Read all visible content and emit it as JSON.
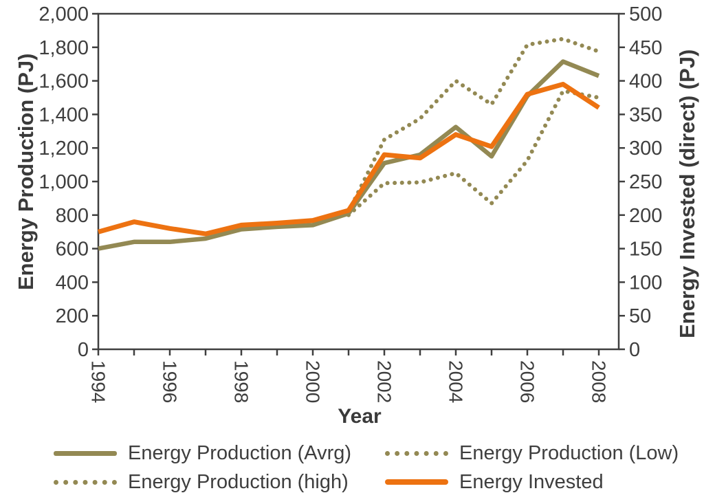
{
  "chart_data": {
    "type": "line",
    "title": "",
    "xlabel": "Year",
    "ylabel_left": "Energy Production (PJ)",
    "ylabel_right": "Energy Invested (direct) (PJ)",
    "grid": false,
    "legend_position": "bottom",
    "x": [
      1994,
      1995,
      1996,
      1997,
      1998,
      1999,
      2000,
      2001,
      2002,
      2003,
      2004,
      2005,
      2006,
      2007,
      2008
    ],
    "x_label_years": [
      1994,
      1996,
      1998,
      2000,
      2002,
      2004,
      2006,
      2008
    ],
    "left_axis": {
      "min": 0,
      "max": 2000,
      "step": 200
    },
    "right_axis": {
      "min": 0,
      "max": 500,
      "step": 50
    },
    "colors": {
      "olive": "#938953",
      "orange": "#ed7211",
      "axis": "#3f3f3f",
      "text": "#3e3e3e"
    },
    "series": [
      {
        "name": "Energy Production (Avrg)",
        "axis": "left",
        "style": "solid",
        "color_key": "olive",
        "width": 6.5,
        "values": [
          600,
          640,
          640,
          660,
          715,
          730,
          740,
          810,
          1110,
          1160,
          1325,
          1150,
          1510,
          1715,
          1630
        ]
      },
      {
        "name": "Energy Production (high)",
        "axis": "left",
        "style": "dotted",
        "color_key": "olive",
        "width": 6,
        "values": [
          null,
          null,
          null,
          null,
          null,
          null,
          null,
          820,
          1250,
          1375,
          1600,
          1460,
          1815,
          1850,
          1775
        ]
      },
      {
        "name": "Energy Production (Low)",
        "axis": "left",
        "style": "dotted",
        "color_key": "olive",
        "width": 6,
        "values": [
          null,
          null,
          null,
          null,
          null,
          null,
          null,
          800,
          990,
          995,
          1050,
          870,
          1125,
          1540,
          1500
        ]
      },
      {
        "name": "Energy Invested",
        "axis": "right",
        "style": "solid",
        "color_key": "orange",
        "width": 7,
        "values": [
          175,
          190,
          180,
          172,
          185,
          188,
          192,
          207,
          290,
          285,
          320,
          302,
          380,
          395,
          360
        ]
      }
    ],
    "legend_items": [
      {
        "label": "Energy Production (Avrg)",
        "swatch": "solid-olive",
        "col": 0,
        "row": 0
      },
      {
        "label": "Energy Production (high)",
        "swatch": "dotted-olive",
        "col": 0,
        "row": 1
      },
      {
        "label": "Energy Production (Low)",
        "swatch": "dotted-olive",
        "col": 1,
        "row": 0
      },
      {
        "label": "Energy Invested",
        "swatch": "solid-orange",
        "col": 1,
        "row": 1
      }
    ]
  }
}
